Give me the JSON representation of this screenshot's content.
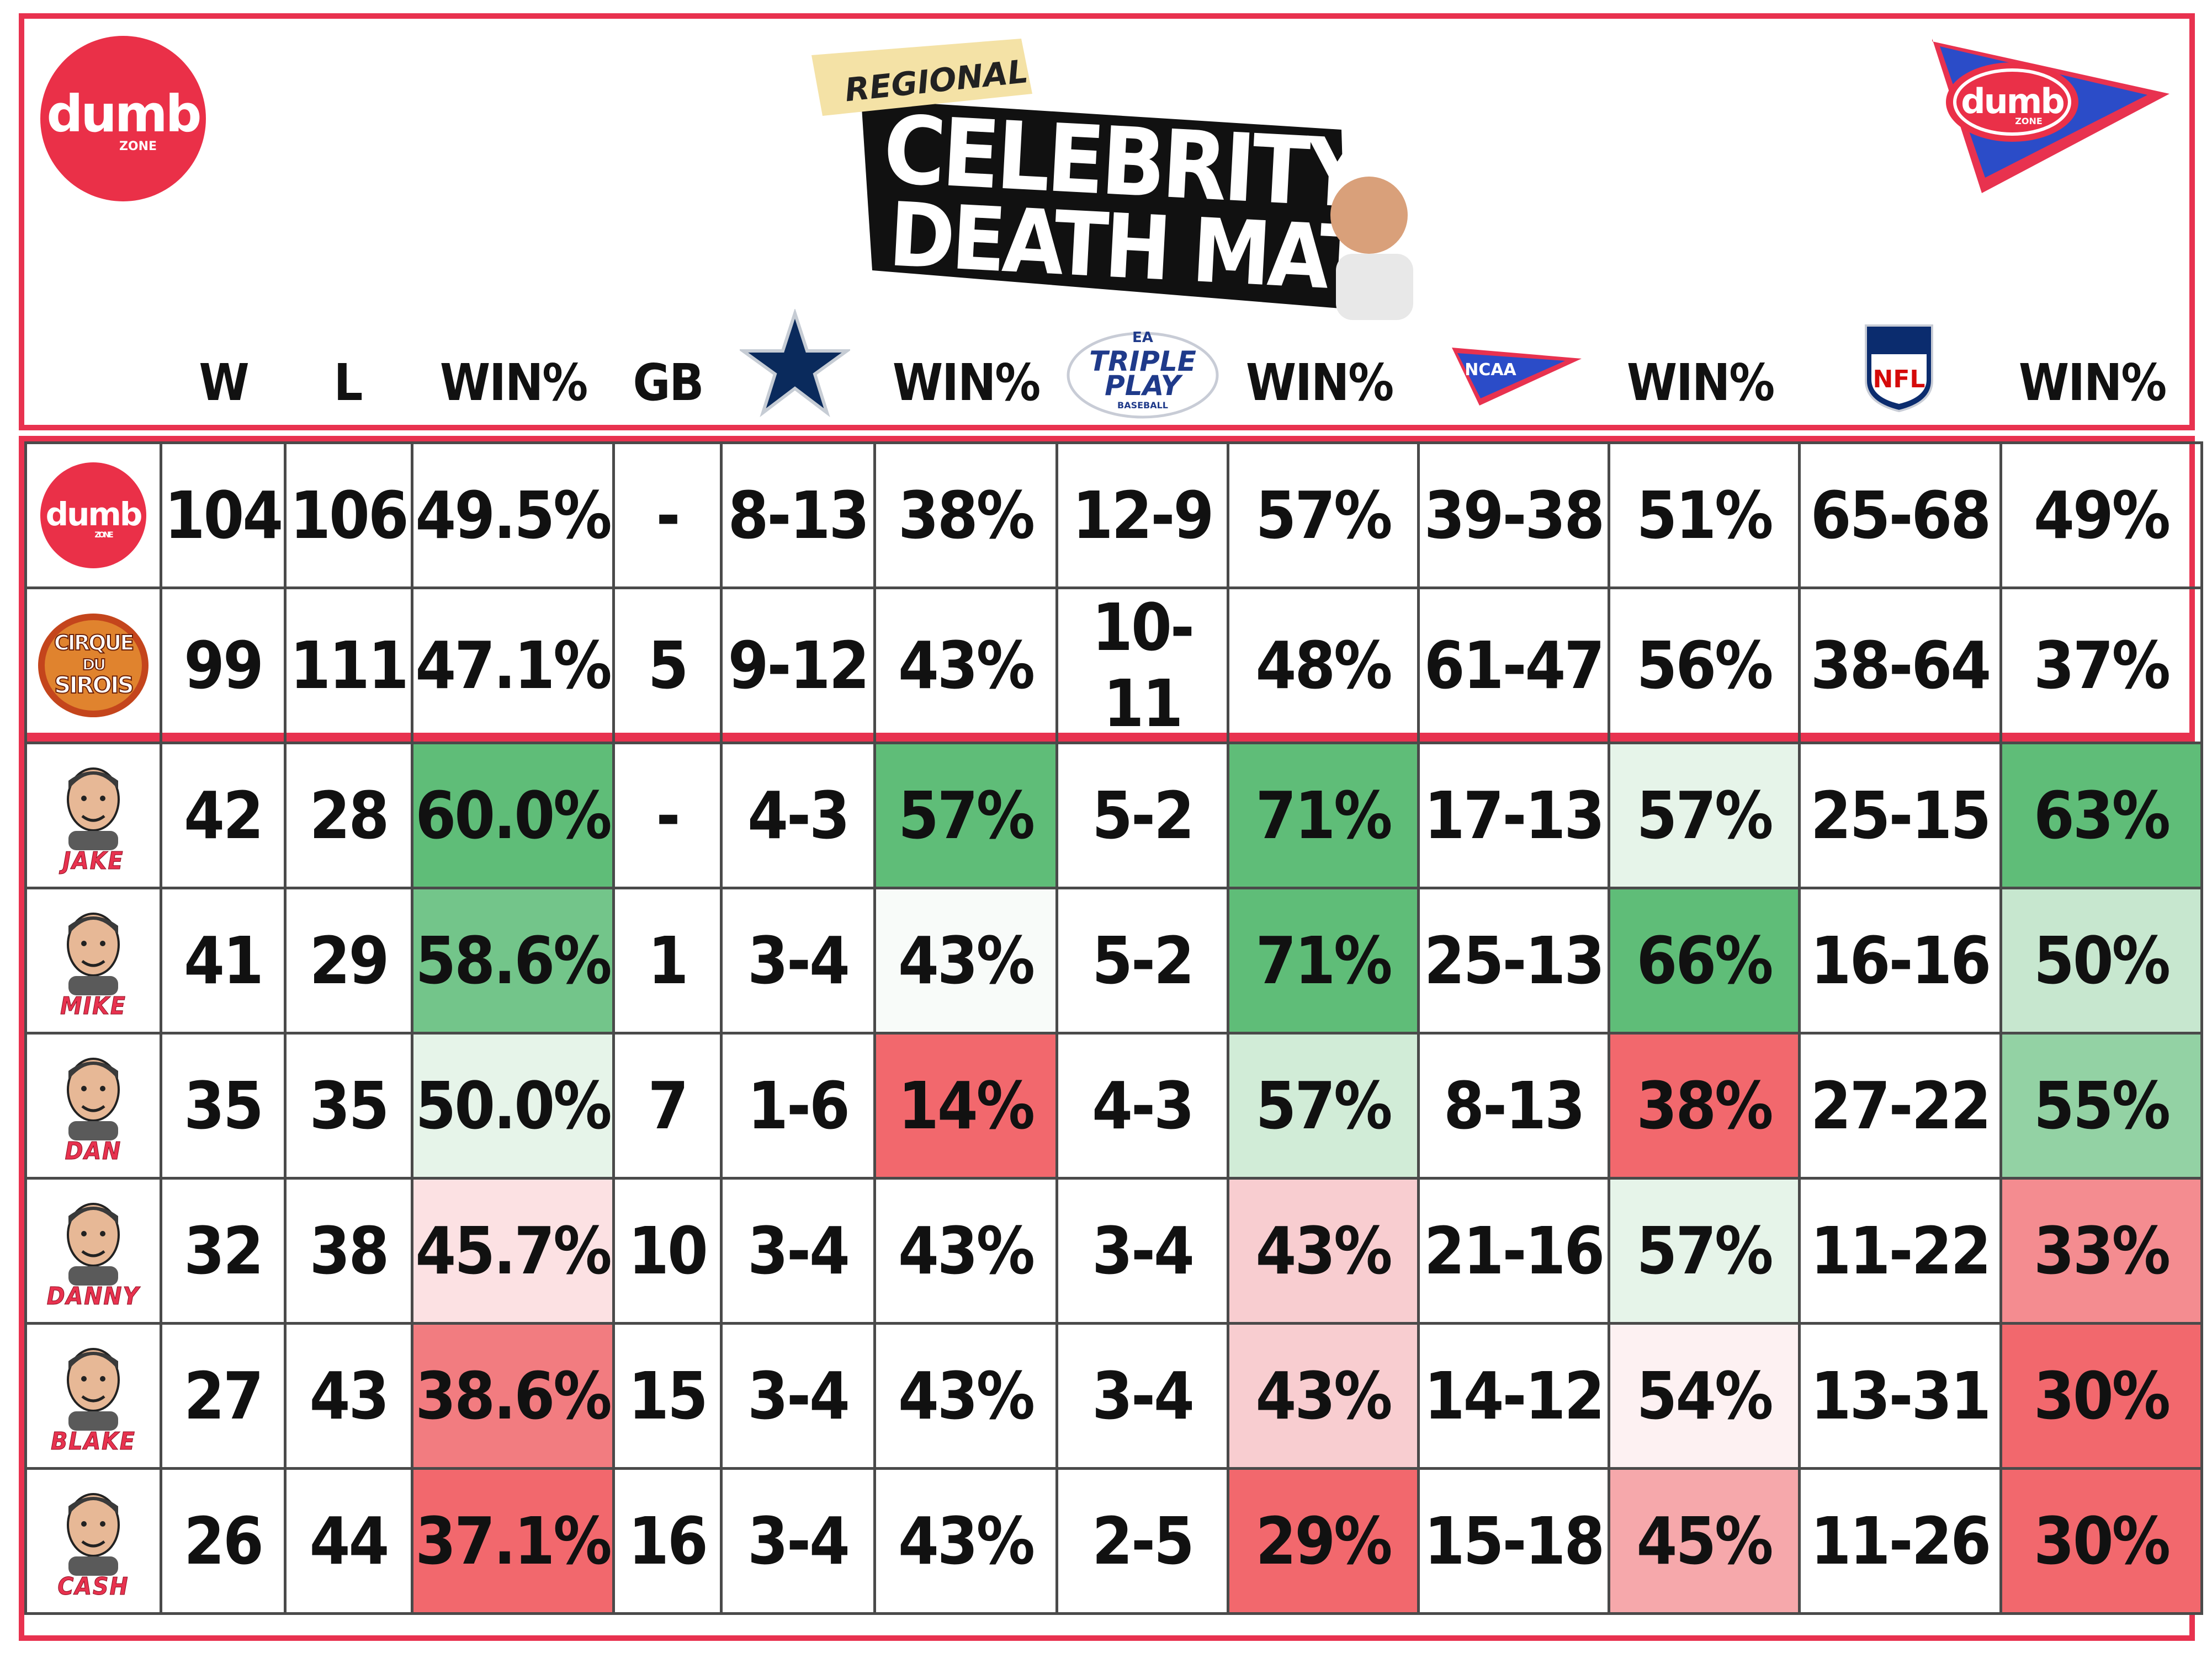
{
  "title": {
    "tag": "REGIONAL",
    "line1": "CELEBRITY",
    "line2": "DEATH MATCH"
  },
  "logos": {
    "left_text": "dumb",
    "left_small": "ZONE",
    "right_text": "dumb",
    "right_small": "ZONE"
  },
  "column_headers": {
    "w": "W",
    "l": "L",
    "win1": "WIN%",
    "gb": "GB",
    "win2": "WIN%",
    "triple_play": {
      "line1": "TRIPLE",
      "line2": "PLAY",
      "small": "BASEBALL",
      "ea": "EA"
    },
    "win3": "WIN%",
    "ncaa": "NCAA",
    "win4": "WIN%",
    "nfl": "NFL",
    "win5": "WIN%"
  },
  "teams": [
    {
      "logo": "dumb-zone-logo",
      "logo_text": "dumb",
      "logo_small": "ZONE",
      "w": "104",
      "l": "106",
      "pct": "49.5%",
      "gb": "-",
      "cowboys": "8-13",
      "cowboys_pct": "38%",
      "mlb": "12-9",
      "mlb_pct": "57%",
      "ncaa": "39-38",
      "ncaa_pct": "51%",
      "nfl": "65-68",
      "nfl_pct": "49%"
    },
    {
      "logo": "cirque-du-sirois-logo",
      "logo_text": "CIRQUE",
      "logo_mid": "DU",
      "logo_bottom": "SIROIS",
      "w": "99",
      "l": "111",
      "pct": "47.1%",
      "gb": "5",
      "cowboys": "9-12",
      "cowboys_pct": "43%",
      "mlb": "10-11",
      "mlb_pct": "48%",
      "ncaa": "61-47",
      "ncaa_pct": "56%",
      "nfl": "38-64",
      "nfl_pct": "37%"
    }
  ],
  "players": [
    {
      "name": "JAKE",
      "w": "42",
      "l": "28",
      "pct": "60.0%",
      "pct_color": "#5fbd78",
      "gb": "-",
      "cowboys": "4-3",
      "cowboys_pct": "57%",
      "cowboys_color": "#5fbd78",
      "mlb": "5-2",
      "mlb_pct": "71%",
      "mlb_color": "#5fbd78",
      "ncaa": "17-13",
      "ncaa_pct": "57%",
      "ncaa_color": "#e6f4e9",
      "nfl": "25-15",
      "nfl_pct": "63%",
      "nfl_color": "#5fbd78"
    },
    {
      "name": "MIKE",
      "w": "41",
      "l": "29",
      "pct": "58.6%",
      "pct_color": "#73c58a",
      "gb": "1",
      "cowboys": "3-4",
      "cowboys_pct": "43%",
      "cowboys_color": "#f8fbf9",
      "mlb": "5-2",
      "mlb_pct": "71%",
      "mlb_color": "#5fbd78",
      "ncaa": "25-13",
      "ncaa_pct": "66%",
      "ncaa_color": "#5fbd78",
      "nfl": "16-16",
      "nfl_pct": "50%",
      "nfl_color": "#c7e7cf"
    },
    {
      "name": "DAN",
      "w": "35",
      "l": "35",
      "pct": "50.0%",
      "pct_color": "#e6f4e9",
      "gb": "7",
      "cowboys": "1-6",
      "cowboys_pct": "14%",
      "cowboys_color": "#f2686d",
      "mlb": "4-3",
      "mlb_pct": "57%",
      "mlb_color": "#d1ecd7",
      "ncaa": "8-13",
      "ncaa_pct": "38%",
      "ncaa_color": "#f2686d",
      "nfl": "27-22",
      "nfl_pct": "55%",
      "nfl_color": "#93d2a4"
    },
    {
      "name": "DANNY",
      "w": "32",
      "l": "38",
      "pct": "45.7%",
      "pct_color": "#fce1e3",
      "gb": "10",
      "cowboys": "3-4",
      "cowboys_pct": "43%",
      "cowboys_color": "#ffffff",
      "mlb": "3-4",
      "mlb_pct": "43%",
      "mlb_color": "#f8cdd0",
      "ncaa": "21-16",
      "ncaa_pct": "57%",
      "ncaa_color": "#e6f4e9",
      "nfl": "11-22",
      "nfl_pct": "33%",
      "nfl_color": "#f48c90"
    },
    {
      "name": "BLAKE",
      "w": "27",
      "l": "43",
      "pct": "38.6%",
      "pct_color": "#f27c80",
      "gb": "15",
      "cowboys": "3-4",
      "cowboys_pct": "43%",
      "cowboys_color": "#ffffff",
      "mlb": "3-4",
      "mlb_pct": "43%",
      "mlb_color": "#f8cdd0",
      "ncaa": "14-12",
      "ncaa_pct": "54%",
      "ncaa_color": "#fdf1f2",
      "nfl": "13-31",
      "nfl_pct": "30%",
      "nfl_color": "#f2686d"
    },
    {
      "name": "CASH",
      "w": "26",
      "l": "44",
      "pct": "37.1%",
      "pct_color": "#f2686d",
      "gb": "16",
      "cowboys": "3-4",
      "cowboys_pct": "43%",
      "cowboys_color": "#ffffff",
      "mlb": "2-5",
      "mlb_pct": "29%",
      "mlb_color": "#f2686d",
      "ncaa": "15-18",
      "ncaa_pct": "45%",
      "ncaa_color": "#f6a8ab",
      "nfl": "11-26",
      "nfl_pct": "30%",
      "nfl_color": "#f2686d"
    }
  ]
}
